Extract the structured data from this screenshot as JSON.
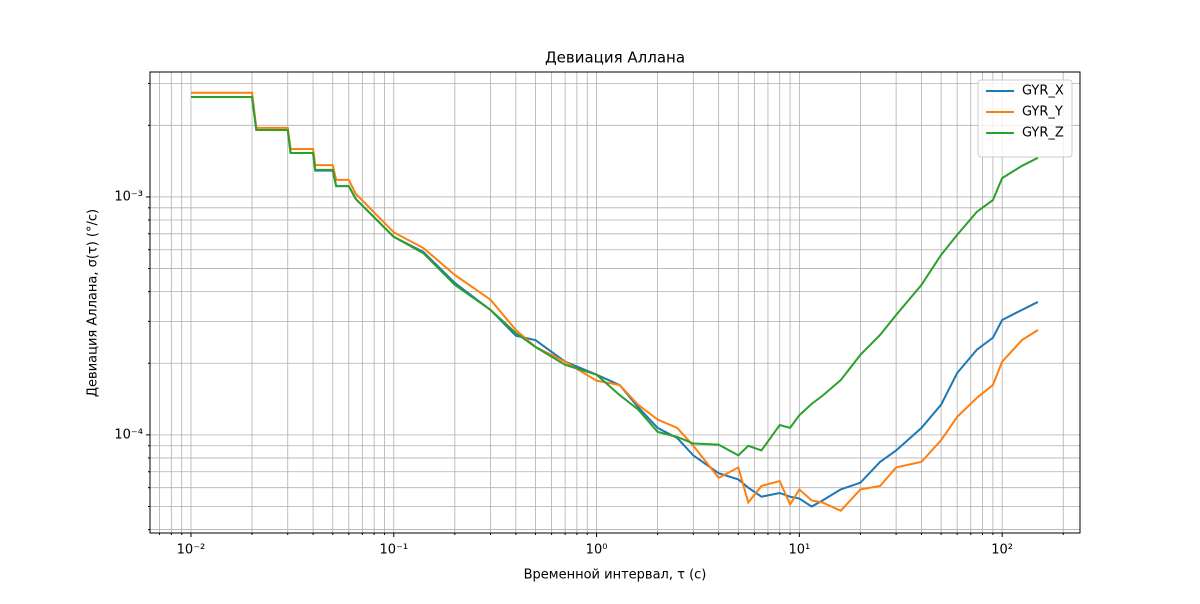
{
  "chart_data": {
    "type": "line",
    "title": "Девиация Аллана",
    "xlabel": "Временной интервал, τ (с)",
    "ylabel": "Девиация Аллана, σ(τ) (°/с)",
    "xscale": "log",
    "yscale": "log",
    "grid": true,
    "legend_loc": "upper right",
    "xlim": [
      0.00628,
      242
    ],
    "ylim": [
      3.87e-05,
      0.00335
    ],
    "xticks": [
      {
        "value": 0.01,
        "label": "10⁻²"
      },
      {
        "value": 0.1,
        "label": "10⁻¹"
      },
      {
        "value": 1,
        "label": "10⁰"
      },
      {
        "value": 10,
        "label": "10¹"
      },
      {
        "value": 100,
        "label": "10²"
      }
    ],
    "yticks": [
      {
        "value": 0.0001,
        "label": "10⁻⁴"
      },
      {
        "value": 0.001,
        "label": "10⁻³"
      }
    ],
    "xminorticks": [
      0.007,
      0.008,
      0.009,
      0.02,
      0.03,
      0.04,
      0.05,
      0.06,
      0.07,
      0.08,
      0.09,
      0.2,
      0.3,
      0.4,
      0.5,
      0.6,
      0.7,
      0.8,
      0.9,
      2,
      3,
      4,
      5,
      6,
      7,
      8,
      9,
      20,
      30,
      40,
      50,
      60,
      70,
      80,
      90,
      200
    ],
    "yminorticks": [
      4e-05,
      5e-05,
      6e-05,
      7e-05,
      8e-05,
      9e-05,
      0.0002,
      0.0003,
      0.0004,
      0.0005,
      0.0006,
      0.0007,
      0.0008,
      0.0009,
      0.002,
      0.003
    ],
    "x": [
      0.01,
      0.02,
      0.021,
      0.03,
      0.031,
      0.04,
      0.041,
      0.05,
      0.052,
      0.06,
      0.065,
      0.1,
      0.14,
      0.2,
      0.3,
      0.4,
      0.5,
      0.7,
      1,
      1.3,
      1.6,
      2,
      2.5,
      3,
      4,
      5,
      5.6,
      6.5,
      8,
      9,
      10,
      11.5,
      13,
      16,
      20,
      25,
      30,
      40,
      50,
      60,
      75,
      90,
      100,
      125,
      150
    ],
    "series": [
      {
        "name": "GYR_X",
        "color": "#1f77b4",
        "values": [
          0.00263,
          0.00263,
          0.00191,
          0.00191,
          0.00153,
          0.00153,
          0.00129,
          0.00129,
          0.00111,
          0.00111,
          0.00098,
          0.000679,
          0.000587,
          0.000435,
          0.000335,
          0.000261,
          0.00025,
          0.000203,
          0.000179,
          0.000162,
          0.000131,
          0.000107,
          9.7e-05,
          8.2e-05,
          6.9e-05,
          6.5e-05,
          6e-05,
          5.5e-05,
          5.7e-05,
          5.5e-05,
          5.4e-05,
          5e-05,
          5.3e-05,
          5.9e-05,
          6.3e-05,
          7.7e-05,
          8.6e-05,
          0.000107,
          0.000134,
          0.000182,
          0.000228,
          0.000256,
          0.000304,
          0.000335,
          0.000362
        ]
      },
      {
        "name": "GYR_Y",
        "color": "#ff7f0e",
        "values": [
          0.00274,
          0.00274,
          0.00195,
          0.00195,
          0.00159,
          0.00159,
          0.00136,
          0.00136,
          0.00118,
          0.00118,
          0.00103,
          0.00071,
          0.00061,
          0.00047,
          0.00037,
          0.000276,
          0.000234,
          0.000203,
          0.000169,
          0.000162,
          0.000134,
          0.000116,
          0.000107,
          9e-05,
          6.6e-05,
          7.3e-05,
          5.2e-05,
          6.1e-05,
          6.4e-05,
          5.1e-05,
          5.9e-05,
          5.3e-05,
          5.2e-05,
          4.8e-05,
          5.9e-05,
          6.1e-05,
          7.3e-05,
          7.7e-05,
          9.5e-05,
          0.000119,
          0.000143,
          0.000162,
          0.000203,
          0.00025,
          0.000276
        ]
      },
      {
        "name": "GYR_Z",
        "color": "#2ca02c",
        "values": [
          0.00263,
          0.00263,
          0.00191,
          0.00191,
          0.00153,
          0.00153,
          0.0013,
          0.0013,
          0.00111,
          0.00111,
          0.00098,
          0.00068,
          0.00058,
          0.000427,
          0.000335,
          0.000268,
          0.000234,
          0.000197,
          0.000179,
          0.000147,
          0.000128,
          0.000103,
          9.8e-05,
          9.2e-05,
          9.1e-05,
          8.2e-05,
          9e-05,
          8.6e-05,
          0.00011,
          0.000107,
          0.000121,
          0.000135,
          0.000146,
          0.00017,
          0.000217,
          0.000263,
          0.000319,
          0.000427,
          0.000571,
          0.000693,
          0.000866,
          0.00097,
          0.0012,
          0.00135,
          0.00146
        ]
      }
    ]
  }
}
